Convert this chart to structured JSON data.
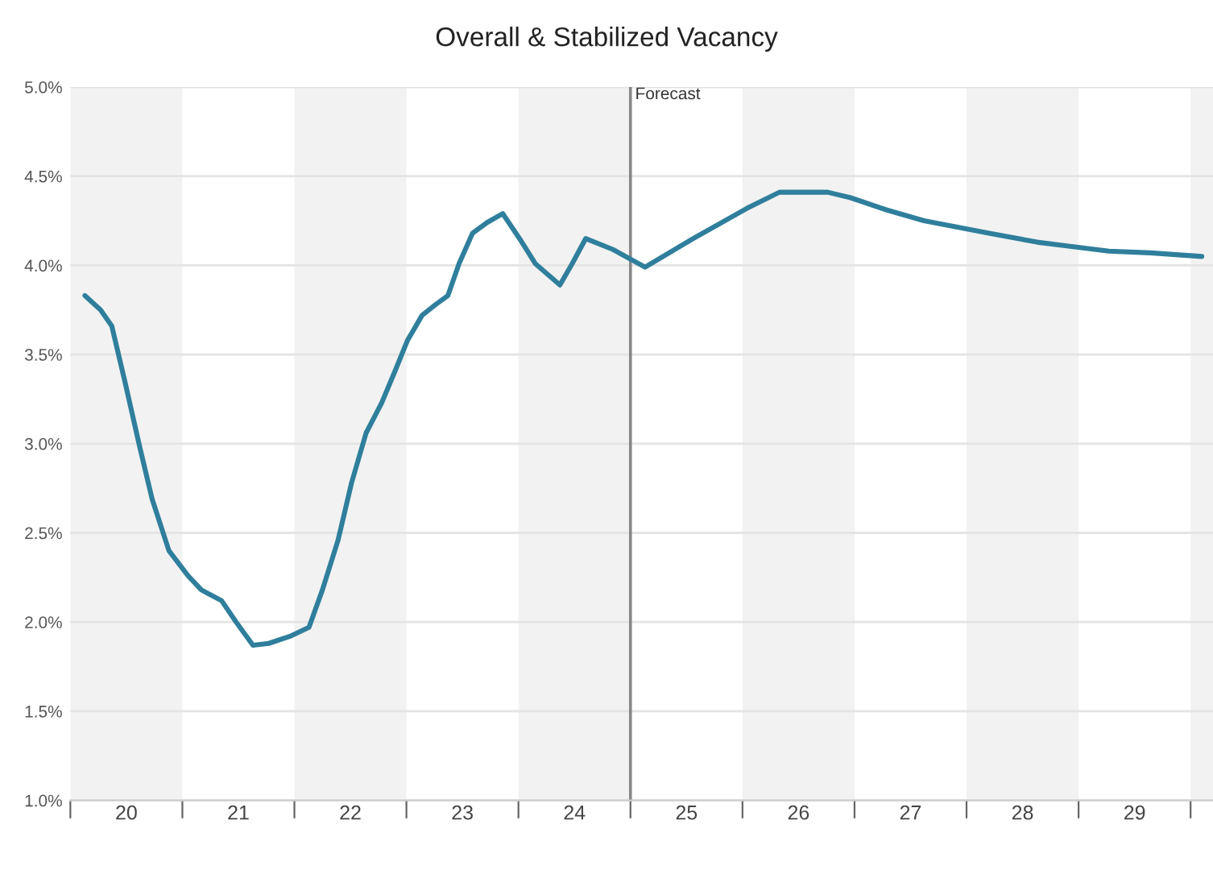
{
  "chart_data": {
    "type": "line",
    "title": "Overall & Stabilized Vacancy",
    "series": [
      {
        "color": "#2f7f9c",
        "x": [
          19.63,
          19.77,
          19.87,
          19.99,
          20.12,
          20.23,
          20.38,
          20.55,
          20.67,
          20.85,
          20.98,
          21.13,
          21.27,
          21.46,
          21.63,
          21.75,
          21.89,
          22.01,
          22.14,
          22.28,
          22.4,
          22.51,
          22.64,
          22.76,
          22.87,
          22.97,
          23.09,
          23.22,
          23.36,
          23.51,
          23.65,
          23.87,
          23.98,
          24.1,
          24.34,
          24.63,
          25.06,
          25.54,
          25.83,
          26.26,
          26.46,
          26.79,
          27.12,
          27.7,
          28.13,
          28.38,
          28.77,
          29.14,
          29.6
        ],
        "values": [
          3.83,
          3.75,
          3.66,
          3.34,
          2.98,
          2.69,
          2.4,
          2.26,
          2.18,
          2.12,
          2.0,
          1.87,
          1.88,
          1.92,
          1.97,
          2.18,
          2.46,
          2.78,
          3.06,
          3.23,
          3.41,
          3.58,
          3.72,
          3.78,
          3.83,
          4.01,
          4.18,
          4.24,
          4.29,
          4.15,
          4.01,
          3.89,
          4.01,
          4.15,
          4.09,
          3.99,
          4.15,
          4.32,
          4.41,
          4.41,
          4.38,
          4.31,
          4.25,
          4.18,
          4.13,
          4.11,
          4.08,
          4.07,
          4.05
        ]
      }
    ],
    "xlim": [
      19.5,
      29.7
    ],
    "xticks": [
      {
        "value": 19.5,
        "label": null
      },
      {
        "value": 20.5,
        "label": null
      },
      {
        "value": 21.5,
        "label": null
      },
      {
        "value": 22.5,
        "label": null
      },
      {
        "value": 23.5,
        "label": null
      },
      {
        "value": 24.5,
        "label": null
      },
      {
        "value": 25.5,
        "label": null
      },
      {
        "value": 26.5,
        "label": null
      },
      {
        "value": 27.5,
        "label": null
      },
      {
        "value": 28.5,
        "label": null
      },
      {
        "value": 29.5,
        "label": null
      },
      20,
      21,
      22,
      23,
      24,
      25,
      26,
      27,
      28,
      29
    ],
    "ylim": [
      1.0,
      5.0
    ],
    "yticks": [
      {
        "value": 1.0,
        "label": "1.0%"
      },
      {
        "value": 1.5,
        "label": "1.5%"
      },
      {
        "value": 2.0,
        "label": "2.0%"
      },
      {
        "value": 2.5,
        "label": "2.5%"
      },
      {
        "value": 3.0,
        "label": "3.0%"
      },
      {
        "value": 3.5,
        "label": "3.5%"
      },
      {
        "value": 4.0,
        "label": "4.0%"
      },
      {
        "value": 4.5,
        "label": "4.5%"
      },
      {
        "value": 5.0,
        "label": "5.0%"
      }
    ],
    "grid": "y",
    "ref_lines": [
      {
        "axis": "x",
        "value": 24.5,
        "label": "Forecast",
        "color": "#888888"
      }
    ],
    "bands": [
      {
        "axis": "x",
        "from": 19.5,
        "to": 20.5,
        "color": "#f2f2f2"
      },
      {
        "axis": "x",
        "from": 21.5,
        "to": 22.5,
        "color": "#f2f2f2"
      },
      {
        "axis": "x",
        "from": 23.5,
        "to": 24.5,
        "color": "#f2f2f2"
      },
      {
        "axis": "x",
        "from": 25.5,
        "to": 26.5,
        "color": "#f2f2f2"
      },
      {
        "axis": "x",
        "from": 27.5,
        "to": 28.5,
        "color": "#f2f2f2"
      },
      {
        "axis": "x",
        "from": 29.5,
        "to": 29.7,
        "color": "#f2f2f2"
      }
    ]
  }
}
